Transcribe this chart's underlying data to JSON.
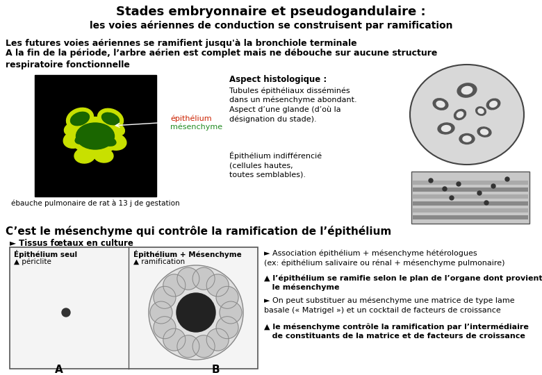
{
  "title_line1": "Stades embryonnaire et pseudogandulaire :",
  "title_line2": "les voies aériennes de conduction se construisent par ramification",
  "body_text1": "Les futures voies aériennes se ramifient jusqu'à la bronchiole terminale",
  "body_text2": "A la fin de la période, l’arbre aérien est complet mais ne débouche sur aucune structure\nrespiratoire fonctionnelle",
  "aspect_histo": "Aspect histologique :",
  "tubules_text": "Tubules épithéliaux disséminés\ndans un mésenchyme abondant.\nAspect d’une glande (d’où la\ndésignation du stade).",
  "epithelium_text": "Épithélium indifférencié\n(cellules hautes,\ntoutes semblables).",
  "label_epithelium": "épithélium",
  "label_mesenchyme": "mésenchyme",
  "label_ebauche": "ébauche pulmonaire de rat à 13 j de gestation",
  "section2_title": "C’est le mésenchyme qui contrôle la ramification de l’épithélium",
  "tissus_label": "► Tissus fœtaux en culture",
  "epi_seul_label": "Épithélium seul",
  "epi_seul_sub": "▲ périclite",
  "epi_mesen_label": "Épithélium + Mésenchyme",
  "epi_mesen_sub": "▲ ramification",
  "label_A": "A",
  "label_B": "B",
  "bullet1": "► Association épithélium + mésenchyme hétérologues\n(ex: épithélium salivaire ou rénal + mésenchyme pulmonaire)",
  "bullet2": "▲ l’épithélium se ramifie selon le plan de l’organe dont provient\n   le mésenchyme",
  "bullet3": "► On peut substituer au mésenchyme une matrice de type lame\nbasale (« Matrigel ») et un cocktail de facteurs de croissance",
  "bullet4": "▲ le mésenchyme contrôle la ramification par l’intermédiaire\n   de constituants de la matrice et de facteurs de croissance",
  "bg_color": "#ffffff",
  "title_color": "#000000",
  "body_color": "#000000",
  "epithelium_color": "#cc2200",
  "mesenchyme_color": "#228B22",
  "fig_w": 7.8,
  "fig_h": 5.4,
  "dpi": 100
}
